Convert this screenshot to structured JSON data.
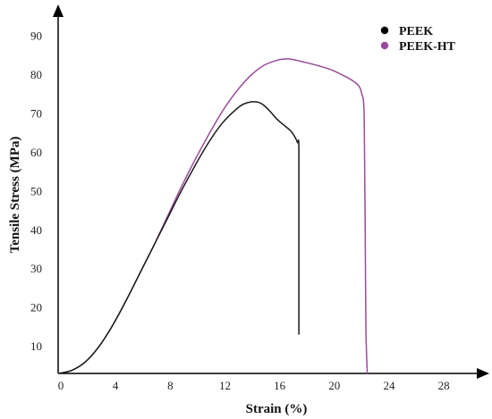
{
  "chart_data": {
    "type": "line",
    "title": "",
    "xlabel": "Strain (%)",
    "ylabel": "Tensile Stress (MPa)",
    "xlim": [
      0,
      31
    ],
    "ylim": [
      3,
      96
    ],
    "xticks": [
      0,
      4,
      8,
      12,
      16,
      20,
      24,
      28
    ],
    "yticks": [
      10,
      20,
      30,
      40,
      50,
      60,
      70,
      80,
      90
    ],
    "grid": false,
    "legend": "top-right",
    "series": [
      {
        "name": "PEEK",
        "color": "#1a1a1a",
        "marker_color": "#000000",
        "x": [
          0,
          1,
          2,
          3,
          4,
          5,
          6,
          7,
          8,
          9,
          10,
          11,
          12,
          13,
          13.5,
          14,
          14.3,
          14.7,
          15,
          15.5,
          16,
          16.5,
          17,
          17.3,
          17.5,
          17.6,
          17.6,
          17.6
        ],
        "y": [
          3,
          3.8,
          6,
          10,
          15.5,
          22,
          29,
          36,
          43,
          50,
          56.5,
          62.5,
          67.5,
          71,
          72.3,
          72.9,
          73,
          72.8,
          72.2,
          70.5,
          68.5,
          67,
          65.5,
          64,
          62.5,
          61,
          40,
          13
        ]
      },
      {
        "name": "PEEK-HT",
        "color": "#9b4a9b",
        "marker_color": "#9b4a9b",
        "x": [
          0,
          1,
          2,
          3,
          4,
          5,
          6,
          7,
          8,
          9,
          10,
          11,
          12,
          13,
          14,
          15,
          16,
          16.5,
          17,
          18,
          19,
          20,
          21,
          21.5,
          22,
          22.2,
          22.35,
          22.4,
          22.45,
          22.5,
          22.6
        ],
        "y": [
          3,
          3.8,
          6,
          10,
          15.5,
          22,
          29,
          36,
          43.5,
          51,
          58,
          64.5,
          70.5,
          75.5,
          79.5,
          82.3,
          83.7,
          84,
          84,
          83.2,
          82.3,
          81.2,
          79.5,
          78.5,
          77,
          75,
          72,
          60,
          40,
          15,
          3
        ]
      }
    ]
  }
}
